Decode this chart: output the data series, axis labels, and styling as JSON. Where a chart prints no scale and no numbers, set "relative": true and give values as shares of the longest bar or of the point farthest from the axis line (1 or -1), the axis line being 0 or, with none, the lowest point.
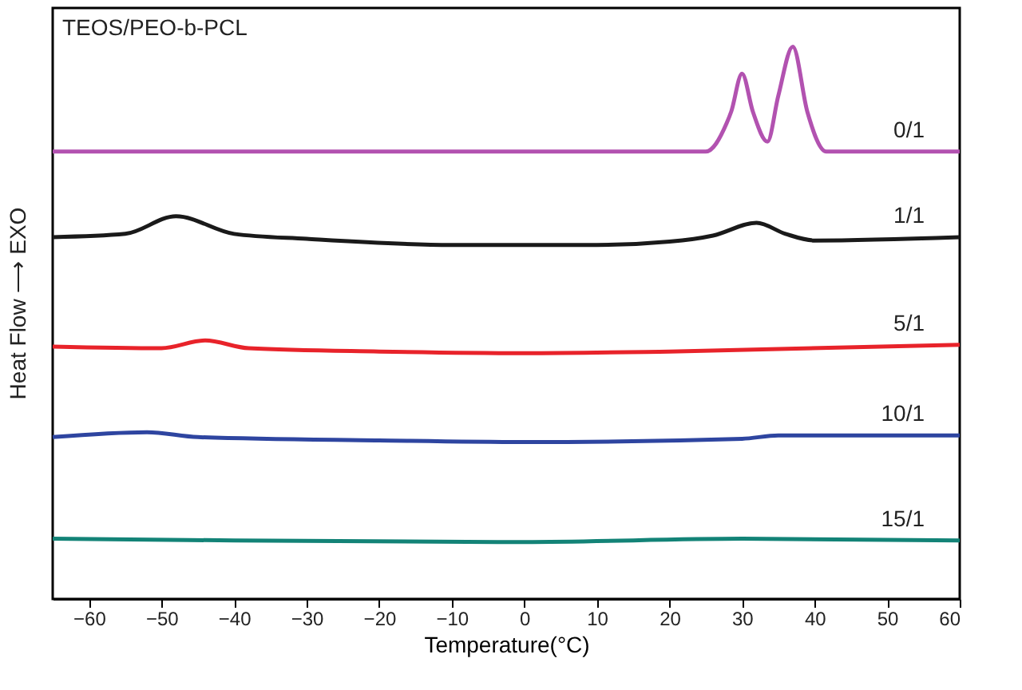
{
  "chart_data": {
    "type": "line",
    "title": "TEOS/PEO-b-PCL",
    "xlabel": "Temperature(°C)",
    "ylabel": "Heat Flow ⟶ EXO",
    "relative": true,
    "xlim": [
      -65,
      60
    ],
    "xticks": [
      -60,
      -50,
      -40,
      -30,
      -20,
      -10,
      0,
      10,
      20,
      30,
      40,
      50,
      60
    ],
    "grid": false,
    "legend": false,
    "marker": "none",
    "line_style": "solid",
    "series": [
      {
        "name": "0/1",
        "color": "#b252b0",
        "x": [
          -65,
          25,
          27.9,
          28.5,
          30,
          31.5,
          33.5,
          35,
          37,
          39,
          41.6,
          60
        ],
        "values": [
          0.81,
          0.81,
          0.862,
          0.882,
          0.951,
          0.882,
          0.828,
          0.911,
          1.0,
          0.882,
          0.81,
          0.81
        ]
      },
      {
        "name": "1/1",
        "color": "#1a1a1a",
        "x": [
          -65,
          -55,
          -48,
          -40,
          -30,
          -10,
          10,
          20,
          26,
          32,
          36,
          40,
          60
        ],
        "values": [
          0.655,
          0.661,
          0.693,
          0.661,
          0.652,
          0.641,
          0.641,
          0.647,
          0.658,
          0.681,
          0.661,
          0.649,
          0.655
        ]
      },
      {
        "name": "5/1",
        "color": "#e8232a",
        "x": [
          -65,
          -50,
          -44,
          -38,
          -20,
          0,
          20,
          60
        ],
        "values": [
          0.457,
          0.454,
          0.468,
          0.454,
          0.448,
          0.445,
          0.448,
          0.46
        ]
      },
      {
        "name": "10/1",
        "color": "#2e45a0",
        "x": [
          -65,
          -52,
          -45,
          -20,
          0,
          30,
          35,
          60
        ],
        "values": [
          0.293,
          0.302,
          0.293,
          0.287,
          0.284,
          0.29,
          0.296,
          0.296
        ]
      },
      {
        "name": "15/1",
        "color": "#138377",
        "x": [
          -65,
          -40,
          0,
          30,
          60
        ],
        "values": [
          0.109,
          0.106,
          0.103,
          0.109,
          0.106
        ]
      }
    ]
  }
}
